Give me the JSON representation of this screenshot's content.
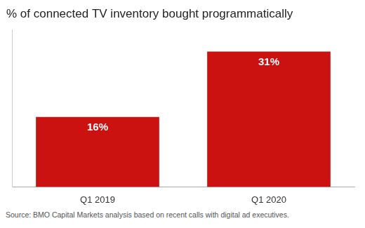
{
  "chart_data": {
    "type": "bar",
    "title": "% of connected TV inventory bought programmatically",
    "categories": [
      "Q1 2019",
      "Q1 2020"
    ],
    "values": [
      16,
      31
    ],
    "value_labels": [
      "16%",
      "31%"
    ],
    "data_labels": true,
    "color": "#cc1111",
    "ylim": [
      0,
      36
    ],
    "grid": false,
    "tick_labels": "x",
    "annotations": [
      "Source: BMO Capital Markets analysis based on recent calls with digital ad executives."
    ]
  }
}
